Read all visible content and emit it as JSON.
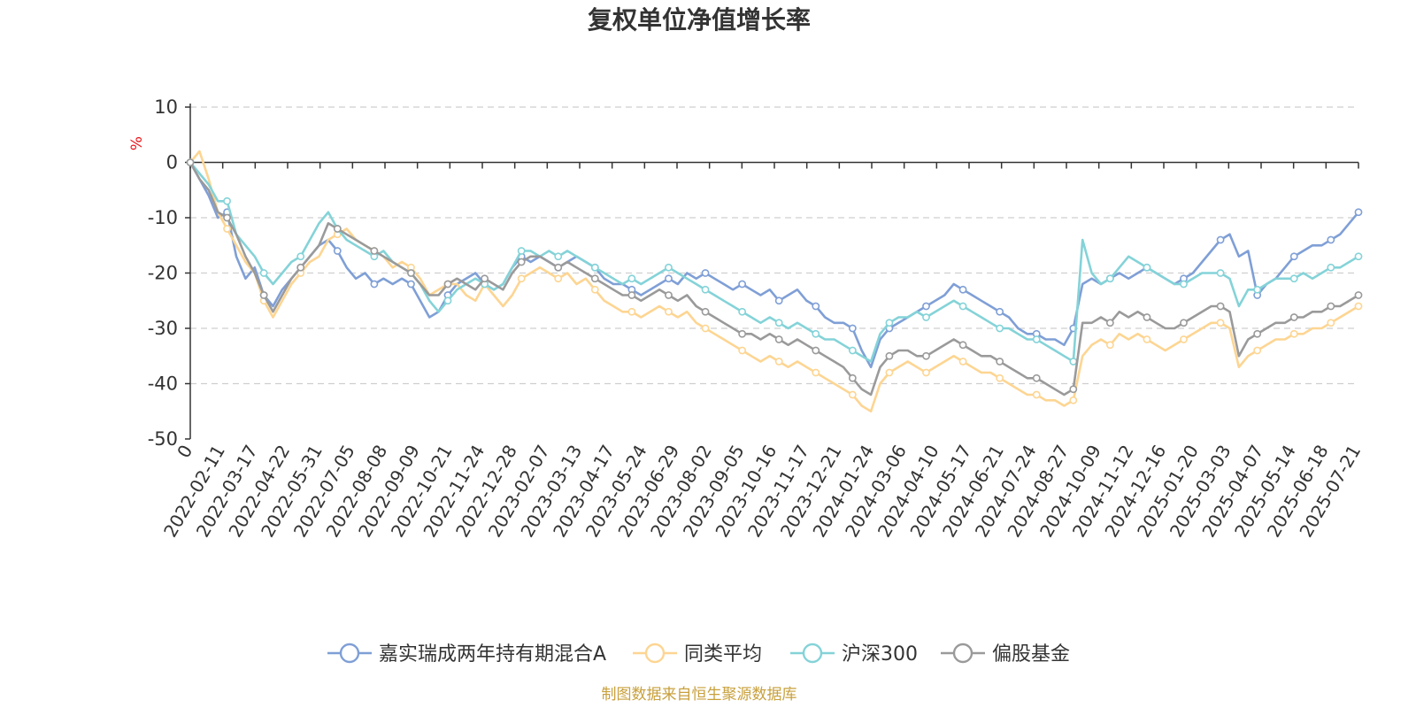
{
  "chart_data": {
    "type": "line",
    "title": "复权单位净值增长率",
    "ylabel": "%",
    "ylim": [
      -50,
      10
    ],
    "yticks": [
      10,
      0,
      -10,
      -20,
      -30,
      -40,
      -50
    ],
    "grid": true,
    "legend_position": "bottom",
    "source_note": "制图数据来自恒生聚源数据库",
    "x_labels": [
      "0",
      "2022-02-11",
      "2022-03-17",
      "2022-04-22",
      "2022-05-31",
      "2022-07-05",
      "2022-08-08",
      "2022-09-09",
      "2022-10-21",
      "2022-11-24",
      "2022-12-28",
      "2023-02-07",
      "2023-03-13",
      "2023-04-17",
      "2023-05-24",
      "2023-06-29",
      "2023-08-02",
      "2023-09-05",
      "2023-10-16",
      "2023-11-17",
      "2023-12-21",
      "2024-01-24",
      "2024-03-06",
      "2024-04-10",
      "2024-05-17",
      "2024-06-21",
      "2024-07-24",
      "2024-08-27",
      "2024-10-09",
      "2024-11-12",
      "2024-12-16",
      "2025-01-20",
      "2025-03-03",
      "2025-04-07",
      "2025-05-14",
      "2025-06-18",
      "2025-07-21"
    ],
    "series": [
      {
        "name": "嘉实瑞成两年持有期混合A",
        "color": "#7f9fd6",
        "values": [
          0,
          -3,
          -6,
          -10,
          -9,
          -17,
          -21,
          -19,
          -24,
          -26,
          -23,
          -21,
          -19,
          -17,
          -15,
          -14,
          -16,
          -19,
          -21,
          -20,
          -22,
          -21,
          -22,
          -21,
          -22,
          -25,
          -28,
          -27,
          -24,
          -22,
          -21,
          -20,
          -22,
          -23,
          -22,
          -19,
          -17,
          -18,
          -17,
          -18,
          -19,
          -18,
          -17,
          -18,
          -19,
          -21,
          -22,
          -22,
          -23,
          -24,
          -23,
          -22,
          -21,
          -22,
          -20,
          -21,
          -20,
          -21,
          -22,
          -23,
          -22,
          -23,
          -24,
          -23,
          -25,
          -24,
          -23,
          -25,
          -26,
          -28,
          -29,
          -29,
          -30,
          -34,
          -37,
          -32,
          -30,
          -29,
          -28,
          -27,
          -26,
          -25,
          -24,
          -22,
          -23,
          -24,
          -25,
          -26,
          -27,
          -28,
          -30,
          -31,
          -31,
          -32,
          -32,
          -33,
          -30,
          -22,
          -21,
          -22,
          -21,
          -20,
          -21,
          -20,
          -19,
          -20,
          -21,
          -22,
          -21,
          -20,
          -18,
          -16,
          -14,
          -13,
          -17,
          -16,
          -24,
          -22,
          -21,
          -19,
          -17,
          -16,
          -15,
          -15,
          -14,
          -13,
          -11,
          -9
        ]
      },
      {
        "name": "同类平均",
        "color": "#fdd592",
        "values": [
          0,
          2,
          -3,
          -9,
          -12,
          -15,
          -18,
          -20,
          -25,
          -28,
          -25,
          -22,
          -20,
          -18,
          -17,
          -14,
          -13,
          -12,
          -14,
          -15,
          -16,
          -17,
          -19,
          -18,
          -19,
          -21,
          -24,
          -23,
          -22,
          -22,
          -24,
          -25,
          -22,
          -24,
          -26,
          -24,
          -21,
          -20,
          -19,
          -20,
          -21,
          -20,
          -22,
          -21,
          -23,
          -25,
          -26,
          -27,
          -27,
          -28,
          -27,
          -26,
          -27,
          -28,
          -27,
          -29,
          -30,
          -31,
          -32,
          -33,
          -34,
          -35,
          -36,
          -35,
          -36,
          -37,
          -36,
          -37,
          -38,
          -39,
          -40,
          -41,
          -42,
          -44,
          -45,
          -40,
          -38,
          -37,
          -36,
          -37,
          -38,
          -37,
          -36,
          -35,
          -36,
          -37,
          -38,
          -38,
          -39,
          -40,
          -41,
          -42,
          -42,
          -43,
          -43,
          -44,
          -43,
          -35,
          -33,
          -32,
          -33,
          -31,
          -32,
          -31,
          -32,
          -33,
          -34,
          -33,
          -32,
          -31,
          -30,
          -29,
          -29,
          -30,
          -37,
          -35,
          -34,
          -33,
          -32,
          -32,
          -31,
          -31,
          -30,
          -30,
          -29,
          -28,
          -27,
          -26
        ]
      },
      {
        "name": "沪深300",
        "color": "#84d3d8",
        "values": [
          0,
          -2,
          -4,
          -7,
          -7,
          -13,
          -15,
          -17,
          -20,
          -22,
          -20,
          -18,
          -17,
          -14,
          -11,
          -9,
          -12,
          -14,
          -15,
          -16,
          -17,
          -16,
          -18,
          -19,
          -20,
          -22,
          -25,
          -27,
          -25,
          -23,
          -22,
          -21,
          -22,
          -23,
          -22,
          -19,
          -16,
          -16,
          -17,
          -16,
          -17,
          -16,
          -17,
          -18,
          -19,
          -20,
          -21,
          -22,
          -21,
          -22,
          -21,
          -20,
          -19,
          -20,
          -21,
          -22,
          -23,
          -24,
          -25,
          -26,
          -27,
          -28,
          -29,
          -28,
          -29,
          -30,
          -29,
          -30,
          -31,
          -32,
          -32,
          -33,
          -34,
          -35,
          -36,
          -31,
          -29,
          -28,
          -28,
          -27,
          -28,
          -27,
          -26,
          -25,
          -26,
          -27,
          -28,
          -29,
          -30,
          -30,
          -31,
          -32,
          -32,
          -33,
          -34,
          -35,
          -36,
          -14,
          -20,
          -22,
          -21,
          -19,
          -17,
          -18,
          -19,
          -20,
          -21,
          -22,
          -22,
          -21,
          -20,
          -20,
          -20,
          -21,
          -26,
          -23,
          -23,
          -22,
          -21,
          -21,
          -21,
          -20,
          -21,
          -20,
          -19,
          -19,
          -18,
          -17
        ]
      },
      {
        "name": "偏股基金",
        "color": "#9a9a9a",
        "values": [
          0,
          -3,
          -5,
          -9,
          -10,
          -13,
          -17,
          -20,
          -24,
          -27,
          -24,
          -21,
          -19,
          -17,
          -15,
          -11,
          -12,
          -13,
          -14,
          -15,
          -16,
          -17,
          -18,
          -19,
          -20,
          -22,
          -24,
          -24,
          -22,
          -21,
          -22,
          -23,
          -21,
          -22,
          -23,
          -20,
          -18,
          -17,
          -17,
          -18,
          -19,
          -18,
          -19,
          -20,
          -21,
          -22,
          -23,
          -24,
          -24,
          -25,
          -24,
          -23,
          -24,
          -25,
          -24,
          -26,
          -27,
          -28,
          -29,
          -30,
          -31,
          -31,
          -32,
          -31,
          -32,
          -33,
          -32,
          -33,
          -34,
          -35,
          -36,
          -37,
          -39,
          -41,
          -42,
          -37,
          -35,
          -34,
          -34,
          -35,
          -35,
          -34,
          -33,
          -32,
          -33,
          -34,
          -35,
          -35,
          -36,
          -37,
          -38,
          -39,
          -39,
          -40,
          -41,
          -42,
          -41,
          -29,
          -29,
          -28,
          -29,
          -27,
          -28,
          -27,
          -28,
          -29,
          -30,
          -30,
          -29,
          -28,
          -27,
          -26,
          -26,
          -27,
          -35,
          -32,
          -31,
          -30,
          -29,
          -29,
          -28,
          -28,
          -27,
          -27,
          -26,
          -26,
          -25,
          -24
        ]
      }
    ]
  }
}
